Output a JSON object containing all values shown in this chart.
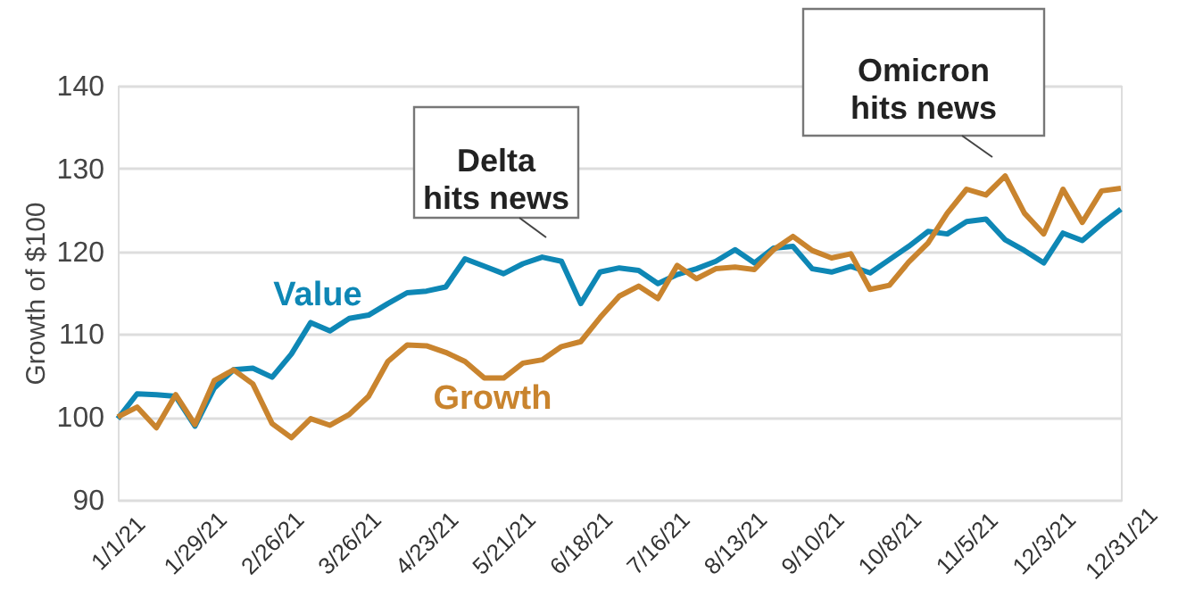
{
  "chart_data": {
    "type": "line",
    "ylabel": "Growth of $100",
    "categories": [
      "1/1/21",
      null,
      null,
      null,
      "1/29/21",
      null,
      null,
      null,
      "2/26/21",
      null,
      null,
      null,
      "3/26/21",
      null,
      null,
      null,
      "4/23/21",
      null,
      null,
      null,
      "5/21/21",
      null,
      null,
      null,
      "6/18/21",
      null,
      null,
      null,
      "7/16/21",
      null,
      null,
      null,
      "8/13/21",
      null,
      null,
      null,
      "9/10/21",
      null,
      null,
      null,
      "10/8/21",
      null,
      null,
      null,
      "11/5/21",
      null,
      null,
      null,
      "12/3/21",
      null,
      null,
      null,
      "12/31/21"
    ],
    "series": [
      {
        "name": "Value",
        "color": "#0e87b5",
        "values": [
          99.8,
          102.8,
          102.7,
          102.5,
          98.9,
          103.5,
          105.7,
          105.9,
          104.8,
          107.6,
          111.4,
          110.4,
          111.9,
          112.3,
          113.7,
          115.0,
          115.2,
          115.7,
          119.1,
          118.2,
          117.3,
          118.5,
          119.3,
          118.8,
          113.7,
          117.5,
          118.0,
          117.7,
          116.1,
          117.2,
          117.9,
          118.8,
          120.2,
          118.6,
          120.4,
          120.6,
          117.9,
          117.5,
          118.2,
          117.4,
          119.0,
          120.6,
          122.4,
          122.1,
          123.6,
          123.9,
          121.4,
          120.1,
          118.6,
          122.2,
          121.3,
          123.3,
          125.1
        ]
      },
      {
        "name": "Growth",
        "color": "#c9842e",
        "values": [
          100.0,
          101.2,
          98.7,
          102.7,
          99.1,
          104.4,
          105.7,
          104.0,
          99.2,
          97.5,
          99.8,
          99.0,
          100.3,
          102.5,
          106.7,
          108.7,
          108.6,
          107.8,
          106.7,
          104.7,
          104.7,
          106.5,
          106.9,
          108.5,
          109.1,
          112.0,
          114.6,
          115.8,
          114.3,
          118.3,
          116.7,
          117.9,
          118.1,
          117.8,
          120.2,
          121.8,
          120.1,
          119.2,
          119.7,
          115.4,
          115.9,
          118.7,
          121.0,
          124.6,
          127.5,
          126.8,
          129.1,
          124.6,
          122.1,
          127.5,
          123.5,
          127.3,
          127.6
        ]
      }
    ],
    "annotations": [
      "Delta\nhits news",
      "Omicron\nhits news"
    ],
    "ylim": [
      90,
      140
    ],
    "yticks": [
      90,
      100,
      110,
      120,
      130,
      140
    ],
    "grid": "y",
    "legend": false,
    "marker": "none",
    "line_style": "solid"
  }
}
